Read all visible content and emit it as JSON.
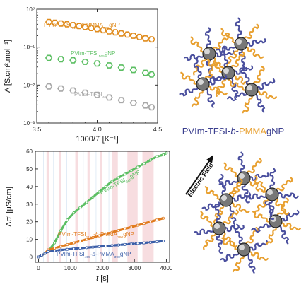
{
  "chart_data": [
    {
      "type": "scatter",
      "xlabel": "1000/T [K⁻¹]",
      "ylabel": "Λ [S.cm².mol⁻¹]",
      "xlim": [
        3.5,
        4.5
      ],
      "ylim": [
        0.001,
        1
      ],
      "yscale": "log",
      "grid": false,
      "x_ticks": [
        "3.5",
        "4.0",
        "4.5"
      ],
      "y_ticks": [
        "10⁻³",
        "10⁻²",
        "10⁻¹",
        "10⁰"
      ],
      "series": [
        {
          "name": "PVIm-TFSI1151-b-PMMA390gNP",
          "color": "#e08c1e",
          "marker": "hexagon",
          "x": [
            3.6,
            3.65,
            3.7,
            3.75,
            3.8,
            3.85,
            3.9,
            3.95,
            4.0,
            4.05,
            4.1,
            4.15,
            4.2,
            4.25,
            4.3,
            4.35,
            4.4,
            4.45
          ],
          "y": [
            0.46,
            0.44,
            0.42,
            0.4,
            0.38,
            0.36,
            0.34,
            0.32,
            0.3,
            0.28,
            0.26,
            0.245,
            0.23,
            0.215,
            0.2,
            0.185,
            0.17,
            0.16
          ]
        },
        {
          "name": "PVIm-TFSI565gNP",
          "color": "#5cbf63",
          "marker": "hexagon",
          "x": [
            3.6,
            3.7,
            3.8,
            3.9,
            4.0,
            4.1,
            4.2,
            4.3,
            4.4,
            4.45
          ],
          "y": [
            0.052,
            0.048,
            0.045,
            0.041,
            0.037,
            0.033,
            0.029,
            0.025,
            0.021,
            0.019
          ]
        },
        {
          "name": "PVIm-TFSI40",
          "color": "#a8a8a8",
          "marker": "hexagon",
          "x": [
            3.6,
            3.7,
            3.8,
            3.9,
            4.0,
            4.1,
            4.2,
            4.3,
            4.4,
            4.45
          ],
          "y": [
            0.0092,
            0.0081,
            0.0072,
            0.0063,
            0.0055,
            0.0047,
            0.004,
            0.0034,
            0.0029,
            0.0026
          ]
        }
      ],
      "labels": [
        {
          "parts": [
            {
              "t": "PVIm-TFSI"
            },
            {
              "t": "1151",
              "sub": true
            },
            {
              "t": "-"
            },
            {
              "t": "b",
              "i": true
            },
            {
              "t": "-PMMA"
            },
            {
              "t": "390",
              "sub": true
            },
            {
              "t": "gNP"
            }
          ],
          "color": "#e08c1e"
        },
        {
          "parts": [
            {
              "t": "PVIm-TFSI"
            },
            {
              "t": "565",
              "sub": true
            },
            {
              "t": "gNP"
            }
          ],
          "color": "#5cbf63"
        },
        {
          "parts": [
            {
              "t": "PVIm-TFSI"
            },
            {
              "t": "40",
              "sub": true
            }
          ],
          "color": "#a8a8a8"
        }
      ]
    },
    {
      "type": "line",
      "xlabel": "t [s]",
      "ylabel": "Δσ' [μS/cm]",
      "xlim": [
        -100,
        4100
      ],
      "ylim": [
        -3,
        60
      ],
      "grid": false,
      "x_ticks": [
        "0",
        "1000",
        "2000",
        "3000",
        "4000"
      ],
      "y_ticks": [
        "0",
        "10",
        "20",
        "30",
        "40",
        "50",
        "60"
      ],
      "shaded_bands": [
        [
          250,
          330
        ],
        [
          630,
          700
        ],
        [
          1150,
          1230
        ],
        [
          1530,
          1600
        ],
        [
          1920,
          2000
        ],
        [
          2300,
          2480
        ],
        [
          2780,
          3100
        ],
        [
          3250,
          3600
        ]
      ],
      "series": [
        {
          "name": "PVIm-TFSI565gNP",
          "color": "#5cbf63",
          "x": [
            0,
            100,
            200,
            300,
            500,
            700,
            900,
            1100,
            1300,
            1500,
            1700,
            1900,
            2100,
            2300,
            2500,
            2700,
            2900,
            3100,
            3300,
            3500,
            3700,
            3900,
            4000
          ],
          "y": [
            0,
            1,
            2,
            3,
            8,
            15,
            21,
            25,
            28,
            31,
            34,
            37,
            40,
            43,
            45,
            47,
            49,
            51,
            53,
            55,
            57,
            58,
            59
          ]
        },
        {
          "name": "PVIm-TFSI1151-b-PMMA390gNP",
          "color": "#e07b1e",
          "x": [
            0,
            100,
            200,
            300,
            500,
            700,
            900,
            1100,
            1300,
            1500,
            1700,
            1900,
            2100,
            2300,
            2500,
            2700,
            2900,
            3100,
            3300,
            3500,
            3700,
            3900
          ],
          "y": [
            0,
            1,
            2,
            4,
            5,
            6,
            7,
            8,
            9,
            10,
            11,
            12,
            13,
            14,
            15,
            16,
            17,
            18,
            19,
            20,
            21,
            22
          ]
        },
        {
          "name": "PVIm-TFSI455-b-PMMA390gNP",
          "color": "#3a5ea8",
          "x": [
            0,
            100,
            200,
            300,
            500,
            700,
            900,
            1100,
            1300,
            1500,
            1700,
            1900,
            2100,
            2300,
            2500,
            2700,
            2900,
            3100,
            3300,
            3500,
            3700,
            3900
          ],
          "y": [
            0,
            1,
            2,
            3,
            3.5,
            4,
            4.3,
            4.7,
            5,
            5.3,
            5.6,
            5.9,
            6.2,
            6.5,
            6.8,
            7.1,
            7.4,
            7.7,
            8,
            8.3,
            8.6,
            9
          ]
        }
      ],
      "labels": [
        {
          "parts": [
            {
              "t": "PVIm-TFSI"
            },
            {
              "t": "565",
              "sub": true
            },
            {
              "t": "gNP"
            }
          ],
          "color": "#5cbf63"
        },
        {
          "parts": [
            {
              "t": "PVIm-TFSI"
            },
            {
              "t": "1151",
              "sub": true
            },
            {
              "t": "-"
            },
            {
              "t": "b",
              "i": true
            },
            {
              "t": "-PMMA"
            },
            {
              "t": "390",
              "sub": true
            },
            {
              "t": "gNP"
            }
          ],
          "color": "#e07b1e"
        },
        {
          "parts": [
            {
              "t": "PVIm-TFSI"
            },
            {
              "t": "455",
              "sub": true
            },
            {
              "t": "-"
            },
            {
              "t": "b",
              "i": true
            },
            {
              "t": "-PMMA"
            },
            {
              "t": "390",
              "sub": true
            },
            {
              "t": "gNP"
            }
          ],
          "color": "#3a5ea8"
        }
      ]
    }
  ],
  "illustration": {
    "caption_parts": [
      {
        "t": "PVIm-TFSI-",
        "color": "#3b3f8f"
      },
      {
        "t": "b",
        "color": "#3b3f8f",
        "i": true
      },
      {
        "t": "-",
        "color": "#3b3f8f"
      },
      {
        "t": "PMMA",
        "color": "#e8a030"
      },
      {
        "t": "gNP",
        "color": "#3b3f8f"
      }
    ],
    "field_label": "Electric Field",
    "chain_colors": [
      "#4a4f9e",
      "#e8a030"
    ]
  }
}
